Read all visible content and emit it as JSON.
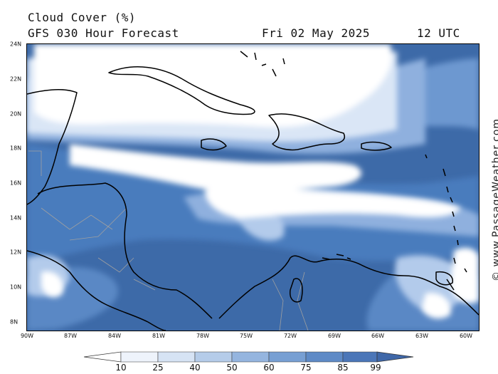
{
  "header": {
    "title": "Cloud Cover (%)",
    "subtitle": "GFS 030 Hour Forecast",
    "date": "Fri 02 May 2025",
    "time": "12 UTC"
  },
  "map": {
    "lat_labels": [
      "24N",
      "22N",
      "20N",
      "18N",
      "16N",
      "14N",
      "12N",
      "10N",
      "8N"
    ],
    "lon_labels": [
      "90W",
      "87W",
      "84W",
      "81W",
      "78W",
      "75W",
      "72W",
      "69W",
      "66W",
      "63W",
      "60W"
    ],
    "colors": {
      "c99": "#3d6aa8",
      "c85": "#4a7cbd",
      "c75": "#6d98d0",
      "c60": "#8fb0de",
      "c50": "#b3cbeb",
      "c25": "#dae6f6",
      "c10": "#ffffff",
      "land": "#000000",
      "border": "#a0a0a0"
    }
  },
  "credit": "© www.PassageWeather.com",
  "colorbar": {
    "labels": [
      "10",
      "25",
      "40",
      "50",
      "60",
      "75",
      "85",
      "99"
    ],
    "colors": [
      "#ffffff",
      "#eef3fb",
      "#d6e3f4",
      "#b5cce9",
      "#95b5df",
      "#779fd3",
      "#5e8ac6",
      "#4b76b8",
      "#3f67a8"
    ]
  }
}
